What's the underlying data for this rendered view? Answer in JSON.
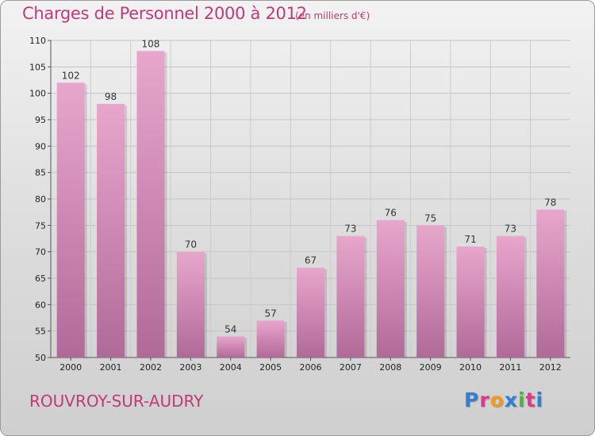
{
  "header": {
    "title": "Charges de Personnel 2000 à 2012",
    "subtitle": "(en milliers d'€)"
  },
  "footer": {
    "commune": "ROUVROY-SUR-AUDRY",
    "logo_letters": [
      "P",
      "r",
      "o",
      "x",
      "i",
      "t",
      "i"
    ],
    "logo_colors": [
      "#2f7fd4",
      "#e0368c",
      "#f29a1b",
      "#2f7fd4",
      "#4db33d",
      "#e0368c",
      "#2f7fd4"
    ]
  },
  "chart_data": {
    "type": "bar",
    "categories": [
      "2000",
      "2001",
      "2002",
      "2003",
      "2004",
      "2005",
      "2006",
      "2007",
      "2008",
      "2009",
      "2010",
      "2011",
      "2012"
    ],
    "values": [
      102,
      98,
      108,
      70,
      54,
      57,
      67,
      73,
      76,
      75,
      71,
      73,
      78
    ],
    "ylim": [
      50,
      110
    ],
    "yticks": [
      50,
      55,
      60,
      65,
      70,
      75,
      80,
      85,
      90,
      95,
      100,
      105,
      110
    ],
    "grid": true,
    "bar_color_top": "#e8a6cc",
    "bar_color_bottom": "#b06a98"
  }
}
